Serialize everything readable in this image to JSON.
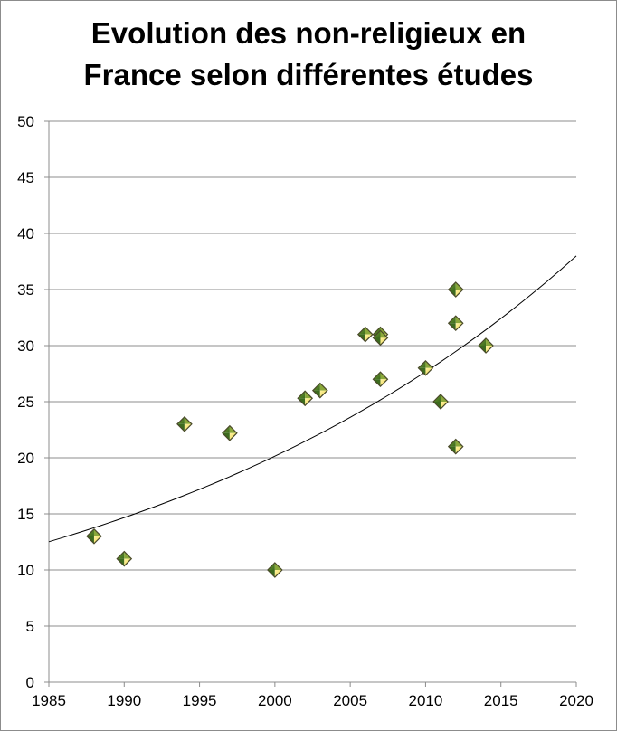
{
  "chart_data": {
    "type": "scatter",
    "title_lines": [
      "Evolution des non-religieux en",
      "France selon différentes études"
    ],
    "xlabel": "",
    "ylabel": "",
    "xlim": [
      1985,
      2020
    ],
    "ylim": [
      0,
      50
    ],
    "x_ticks": [
      1985,
      1990,
      1995,
      2000,
      2005,
      2010,
      2015,
      2020
    ],
    "y_ticks": [
      0,
      5,
      10,
      15,
      20,
      25,
      30,
      35,
      40,
      45,
      50
    ],
    "grid": "horizontal",
    "legend": "none",
    "marker": "diamond",
    "colors": {
      "marker_dark": "#3d6b1e",
      "marker_light": "#e8d24a",
      "marker_edge": "#4a4a2a",
      "grid": "#8c8c8c",
      "trend": "#000000"
    },
    "points": [
      {
        "x": 1988,
        "y": 13
      },
      {
        "x": 1990,
        "y": 11
      },
      {
        "x": 1994,
        "y": 23
      },
      {
        "x": 1997,
        "y": 22.2
      },
      {
        "x": 2000,
        "y": 10
      },
      {
        "x": 2002,
        "y": 25.3
      },
      {
        "x": 2003,
        "y": 26
      },
      {
        "x": 2006,
        "y": 31
      },
      {
        "x": 2007,
        "y": 31
      },
      {
        "x": 2007,
        "y": 30.7
      },
      {
        "x": 2007,
        "y": 27
      },
      {
        "x": 2010,
        "y": 28
      },
      {
        "x": 2011,
        "y": 25
      },
      {
        "x": 2012,
        "y": 35
      },
      {
        "x": 2012,
        "y": 32
      },
      {
        "x": 2012,
        "y": 21
      },
      {
        "x": 2014,
        "y": 30
      }
    ],
    "trendline": {
      "type": "exponential",
      "points": [
        {
          "x": 1985,
          "y": 12.5
        },
        {
          "x": 2000,
          "y": 20.1
        },
        {
          "x": 2010,
          "y": 27.9
        },
        {
          "x": 2020,
          "y": 37.8
        }
      ]
    }
  }
}
